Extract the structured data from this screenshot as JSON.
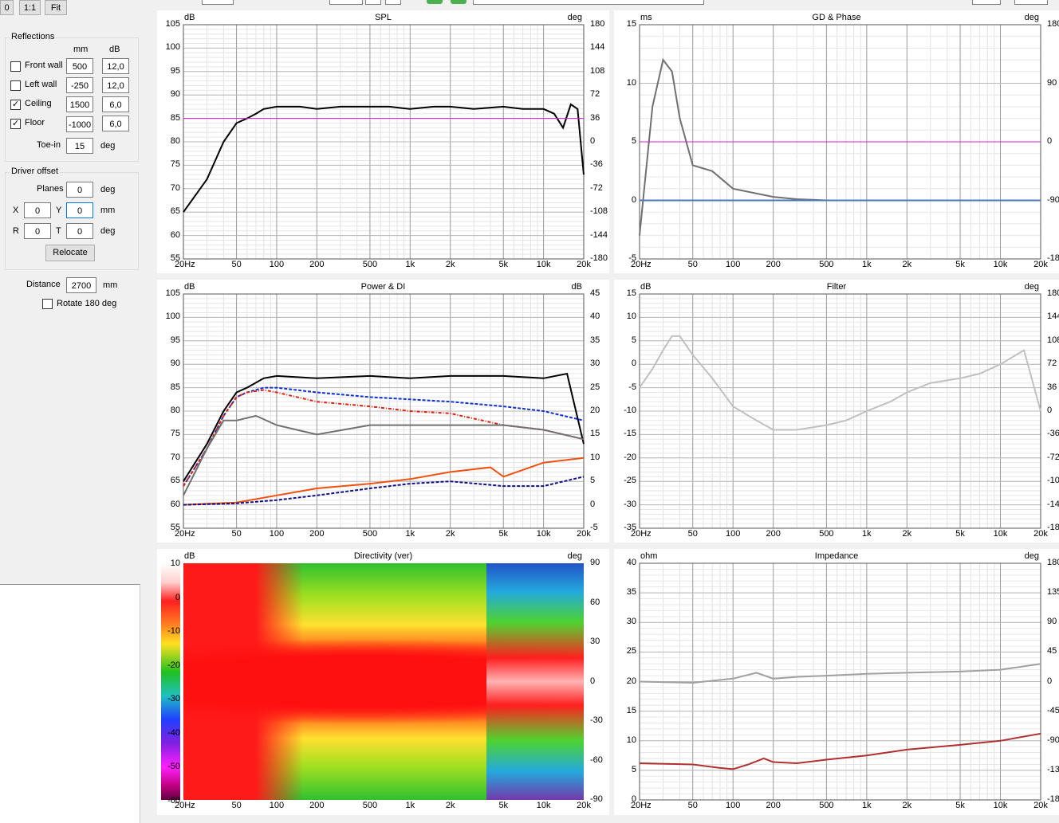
{
  "toolbar": {
    "btn_zero": "0",
    "btn_one_to_one": "1:1",
    "btn_fit": "Fit"
  },
  "reflections": {
    "title": "Reflections",
    "col_mm": "mm",
    "col_db": "dB",
    "rows": [
      {
        "label": "Front wall",
        "checked": false,
        "mm": "500",
        "db": "12,0"
      },
      {
        "label": "Left wall",
        "checked": false,
        "mm": "-250",
        "db": "12,0"
      },
      {
        "label": "Ceiling",
        "checked": true,
        "mm": "1500",
        "db": "6,0"
      },
      {
        "label": "Floor",
        "checked": true,
        "mm": "-1000",
        "db": "6,0"
      }
    ],
    "toe_in_label": "Toe-in",
    "toe_in_value": "15",
    "toe_in_unit": "deg"
  },
  "driver_offset": {
    "title": "Driver offset",
    "planes_label": "Planes",
    "planes_value": "0",
    "planes_unit": "deg",
    "x_label": "X",
    "x_value": "0",
    "y_label": "Y",
    "y_value": "0",
    "xy_unit": "mm",
    "r_label": "R",
    "r_value": "0",
    "t_label": "T",
    "t_value": "0",
    "rt_unit": "deg",
    "relocate_label": "Relocate"
  },
  "distance": {
    "label": "Distance",
    "value": "2700",
    "unit": "mm"
  },
  "rotate": {
    "label": "Rotate 180 deg",
    "checked": false
  },
  "xticks": [
    "20Hz",
    "50",
    "100",
    "200",
    "500",
    "1k",
    "2k",
    "5k",
    "10k",
    "20k"
  ],
  "colors": {
    "black": "#000000",
    "magenta": "#cc22cc",
    "blue": "#1030d0",
    "red": "#e02010",
    "orange": "#f05010",
    "navy": "#10108a",
    "grey": "#707070",
    "lightgrey": "#c0c0c0",
    "olive": "#8a7a10",
    "steel": "#4a7ab0",
    "darkred": "#b03030"
  },
  "spl": {
    "title": "SPL",
    "ylabel": "dB",
    "y2label": "deg",
    "yticks": [
      "105",
      "100",
      "95",
      "90",
      "85",
      "80",
      "75",
      "70",
      "65",
      "60",
      "55"
    ],
    "y2ticks": [
      "180",
      "144",
      "108",
      "72",
      "36",
      "0",
      "-36",
      "-72",
      "-108",
      "-144",
      "-180"
    ]
  },
  "gd": {
    "title": "GD & Phase",
    "ylabel": "ms",
    "y2label": "deg",
    "yticks": [
      "15",
      "10",
      "5",
      "0",
      "-5"
    ],
    "y2ticks": [
      "180",
      "90",
      "0",
      "-90",
      "-180"
    ]
  },
  "power": {
    "title": "Power & DI",
    "ylabel": "dB",
    "y2label": "dB",
    "yticks": [
      "105",
      "100",
      "95",
      "90",
      "85",
      "80",
      "75",
      "70",
      "65",
      "60",
      "55"
    ],
    "y2ticks": [
      "45",
      "40",
      "35",
      "30",
      "25",
      "20",
      "15",
      "10",
      "5",
      "0",
      "-5"
    ]
  },
  "filter": {
    "title": "Filter",
    "ylabel": "dB",
    "y2label": "deg",
    "yticks": [
      "15",
      "10",
      "5",
      "0",
      "-5",
      "-10",
      "-15",
      "-20",
      "-25",
      "-30",
      "-35"
    ],
    "y2ticks": [
      "180",
      "144",
      "108",
      "72",
      "36",
      "0",
      "-36",
      "-72",
      "-108",
      "-144",
      "-180"
    ]
  },
  "directivity": {
    "title": "Directivity (ver)",
    "ylabel": "dB",
    "y2label": "deg",
    "scale": [
      "10",
      "0",
      "-10",
      "-20",
      "-30",
      "-40",
      "-50",
      "-60"
    ],
    "y2ticks": [
      "90",
      "60",
      "30",
      "0",
      "-30",
      "-60",
      "-90"
    ]
  },
  "impedance": {
    "title": "Impedance",
    "ylabel": "ohm",
    "y2label": "deg",
    "yticks": [
      "40",
      "35",
      "30",
      "25",
      "20",
      "15",
      "10",
      "5",
      "0"
    ],
    "y2ticks": [
      "180",
      "135",
      "90",
      "45",
      "0",
      "-45",
      "-90",
      "-135",
      "-180"
    ]
  },
  "chart_data": [
    {
      "type": "line",
      "title": "SPL",
      "xscale": "log",
      "xlim": [
        20,
        20000
      ],
      "ylim": [
        55,
        105
      ],
      "series": [
        {
          "color": "#000000",
          "x": [
            20,
            30,
            40,
            50,
            60,
            70,
            80,
            100,
            150,
            200,
            300,
            500,
            700,
            1000,
            1500,
            2000,
            3000,
            5000,
            7000,
            10000,
            12000,
            14000,
            16000,
            18000,
            20000
          ],
          "y": [
            65,
            72,
            80,
            84,
            85,
            86,
            87,
            87.5,
            87.5,
            87,
            87.5,
            87.5,
            87.5,
            87,
            87.5,
            87.5,
            87,
            87.5,
            87,
            87,
            86,
            83,
            88,
            87,
            73
          ]
        },
        {
          "color": "#cc22cc",
          "x": [
            20,
            20000
          ],
          "y": [
            85,
            85
          ]
        }
      ]
    },
    {
      "type": "line",
      "title": "GD & Phase",
      "xscale": "log",
      "xlim": [
        20,
        20000
      ],
      "ylim": [
        -5,
        15
      ],
      "series": [
        {
          "color": "#707070",
          "x": [
            20,
            25,
            30,
            35,
            40,
            50,
            70,
            100,
            200,
            300,
            500,
            1000,
            2000
          ],
          "y": [
            -3,
            8,
            12,
            11,
            7,
            3,
            2.5,
            1,
            0.3,
            0.1,
            0,
            0,
            0
          ]
        },
        {
          "color": "#4a7ab0",
          "x": [
            20,
            50,
            100,
            1000,
            20000
          ],
          "y": [
            0,
            0,
            0,
            0,
            0
          ]
        },
        {
          "color": "#cc22cc",
          "x": [
            20,
            20000
          ],
          "y": [
            5,
            5
          ]
        }
      ]
    },
    {
      "type": "line",
      "title": "Power & DI",
      "xscale": "log",
      "xlim": [
        20,
        20000
      ],
      "ylim": [
        55,
        105
      ],
      "series": [
        {
          "color": "#000000",
          "x": [
            20,
            30,
            40,
            50,
            60,
            80,
            100,
            200,
            500,
            1000,
            2000,
            5000,
            10000,
            15000,
            20000
          ],
          "y": [
            65,
            73,
            80,
            84,
            85,
            87,
            87.5,
            87,
            87.5,
            87,
            87.5,
            87.5,
            87,
            88,
            73
          ]
        },
        {
          "color": "#1030d0",
          "x": [
            20,
            30,
            40,
            50,
            60,
            80,
            100,
            200,
            500,
            1000,
            2000,
            5000,
            10000,
            20000
          ],
          "y": [
            64,
            72,
            79,
            83,
            84,
            85,
            85,
            84,
            83,
            82.5,
            82,
            81,
            80,
            78
          ]
        },
        {
          "color": "#e02010",
          "x": [
            20,
            30,
            40,
            50,
            60,
            80,
            100,
            200,
            500,
            1000,
            2000,
            5000,
            10000,
            20000
          ],
          "y": [
            64,
            72,
            79,
            83,
            84,
            84.5,
            84,
            82,
            81,
            80,
            79.5,
            77,
            76,
            74
          ]
        },
        {
          "color": "#707070",
          "x": [
            20,
            30,
            40,
            50,
            70,
            100,
            200,
            500,
            1000,
            2000,
            5000,
            10000,
            20000
          ],
          "y": [
            62,
            72,
            78,
            78,
            79,
            77,
            75,
            77,
            77,
            77,
            77,
            76,
            74
          ]
        },
        {
          "color": "#f05010",
          "x": [
            20,
            50,
            100,
            200,
            500,
            1000,
            2000,
            4000,
            5000,
            10000,
            20000
          ],
          "y": [
            60,
            60.5,
            62,
            63.5,
            64.5,
            65.5,
            67,
            68,
            66,
            69,
            70
          ]
        },
        {
          "color": "#10108a",
          "x": [
            20,
            50,
            100,
            200,
            500,
            1000,
            2000,
            5000,
            10000,
            20000
          ],
          "y": [
            60,
            60.3,
            61,
            62,
            63.5,
            64.5,
            65,
            64,
            64,
            66
          ]
        }
      ]
    },
    {
      "type": "line",
      "title": "Filter",
      "xscale": "log",
      "xlim": [
        20,
        20000
      ],
      "ylim": [
        -35,
        15
      ],
      "series": [
        {
          "color": "#c0c0c0",
          "x": [
            20,
            25,
            30,
            35,
            40,
            50,
            70,
            100,
            150,
            200,
            300,
            500,
            700,
            1000,
            1500,
            2000,
            3000,
            5000,
            7000,
            10000,
            15000,
            20000
          ],
          "y": [
            -5,
            -1,
            3,
            6,
            6,
            2,
            -3,
            -9,
            -12,
            -14,
            -14,
            -13,
            -12,
            -10,
            -8,
            -6,
            -4,
            -3,
            -2,
            0,
            3,
            -10
          ]
        }
      ]
    },
    {
      "type": "heatmap",
      "title": "Directivity (ver)",
      "xscale": "log",
      "xlim": [
        20,
        20000
      ],
      "ylim": [
        -90,
        90
      ],
      "zlim": [
        -60,
        10
      ]
    },
    {
      "type": "line",
      "title": "Impedance",
      "xscale": "log",
      "xlim": [
        20,
        20000
      ],
      "ylim": [
        0,
        40
      ],
      "series": [
        {
          "color": "#b03030",
          "x": [
            20,
            50,
            80,
            100,
            130,
            170,
            200,
            300,
            500,
            1000,
            2000,
            5000,
            10000,
            20000
          ],
          "y": [
            6.2,
            6,
            5.4,
            5.2,
            6,
            7,
            6.4,
            6.2,
            6.8,
            7.5,
            8.5,
            9.3,
            10,
            11.2
          ]
        },
        {
          "color": "#a0a0a0",
          "x": [
            20,
            50,
            100,
            150,
            200,
            300,
            500,
            1000,
            2000,
            5000,
            10000,
            20000
          ],
          "y": [
            20,
            19.8,
            20.5,
            21.5,
            20.5,
            20.8,
            21,
            21.3,
            21.5,
            21.7,
            22,
            23
          ]
        }
      ]
    }
  ]
}
